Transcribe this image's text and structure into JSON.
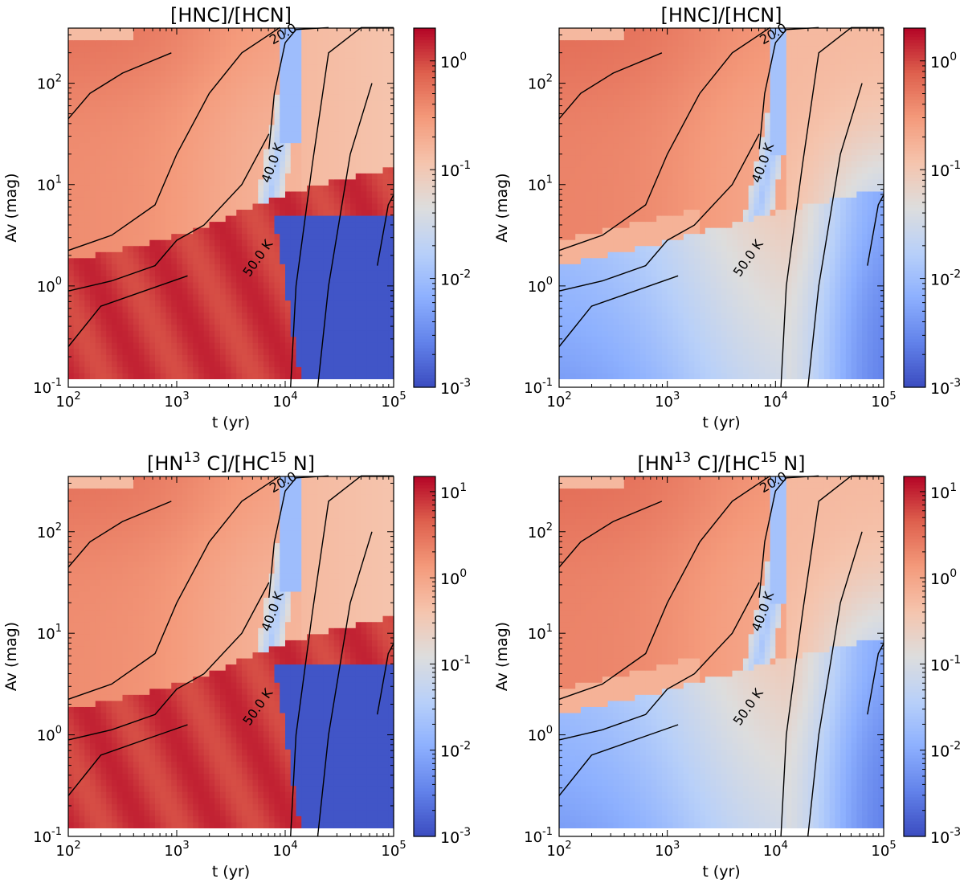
{
  "figure": {
    "panel_count": 4,
    "layout": "2x2"
  },
  "chart_data": [
    {
      "type": "heatmap",
      "panel": "top-left",
      "title": "[HNC]/[HCN]",
      "xlabel": "t (yr)",
      "ylabel": "Av (mag)",
      "xscale": "log",
      "yscale": "log",
      "xlim": [
        100,
        100000
      ],
      "ylim": [
        0.1,
        350
      ],
      "x_ticks": [
        {
          "base": "10",
          "exp": "2"
        },
        {
          "base": "10",
          "exp": "3"
        },
        {
          "base": "10",
          "exp": "4"
        },
        {
          "base": "10",
          "exp": "5"
        }
      ],
      "y_ticks": [
        {
          "base": "10",
          "exp": "-1"
        },
        {
          "base": "10",
          "exp": "0"
        },
        {
          "base": "10",
          "exp": "1"
        },
        {
          "base": "10",
          "exp": "2"
        }
      ],
      "colorbar": {
        "colormap": "coolwarm",
        "scale": "log",
        "range": [
          0.001,
          2
        ],
        "ticks": [
          {
            "base": "10",
            "exp": "-3"
          },
          {
            "base": "10",
            "exp": "-2"
          },
          {
            "base": "10",
            "exp": "-1"
          },
          {
            "base": "10",
            "exp": "0"
          }
        ]
      },
      "variant": "A",
      "contour_labels": [
        "20.0",
        "40.0 K",
        "50.0 K"
      ]
    },
    {
      "type": "heatmap",
      "panel": "top-right",
      "title": "[HNC]/[HCN]",
      "xlabel": "t (yr)",
      "ylabel": "Av (mag)",
      "xscale": "log",
      "yscale": "log",
      "xlim": [
        100,
        100000
      ],
      "ylim": [
        0.1,
        350
      ],
      "x_ticks": [
        {
          "base": "10",
          "exp": "2"
        },
        {
          "base": "10",
          "exp": "3"
        },
        {
          "base": "10",
          "exp": "4"
        },
        {
          "base": "10",
          "exp": "5"
        }
      ],
      "y_ticks": [
        {
          "base": "10",
          "exp": "-1"
        },
        {
          "base": "10",
          "exp": "0"
        },
        {
          "base": "10",
          "exp": "1"
        },
        {
          "base": "10",
          "exp": "2"
        }
      ],
      "colorbar": {
        "colormap": "coolwarm",
        "scale": "log",
        "range": [
          0.001,
          2
        ],
        "ticks": [
          {
            "base": "10",
            "exp": "-3"
          },
          {
            "base": "10",
            "exp": "-2"
          },
          {
            "base": "10",
            "exp": "-1"
          },
          {
            "base": "10",
            "exp": "0"
          }
        ]
      },
      "variant": "B",
      "contour_labels": [
        "20.0",
        "40.0 K",
        "50.0 K"
      ]
    },
    {
      "type": "heatmap",
      "panel": "bottom-left",
      "title": "[HN13C]/[HC15N]",
      "title_parts": [
        {
          "t": "[HN"
        },
        {
          "sup": "13"
        },
        {
          "t": " C]/[HC"
        },
        {
          "sup": "15"
        },
        {
          "t": " N]"
        }
      ],
      "xlabel": "t (yr)",
      "ylabel": "Av (mag)",
      "xscale": "log",
      "yscale": "log",
      "xlim": [
        100,
        100000
      ],
      "ylim": [
        0.1,
        350
      ],
      "x_ticks": [
        {
          "base": "10",
          "exp": "2"
        },
        {
          "base": "10",
          "exp": "3"
        },
        {
          "base": "10",
          "exp": "4"
        },
        {
          "base": "10",
          "exp": "5"
        }
      ],
      "y_ticks": [
        {
          "base": "10",
          "exp": "-1"
        },
        {
          "base": "10",
          "exp": "0"
        },
        {
          "base": "10",
          "exp": "1"
        },
        {
          "base": "10",
          "exp": "2"
        }
      ],
      "colorbar": {
        "colormap": "coolwarm",
        "scale": "log",
        "range": [
          0.001,
          15
        ],
        "ticks": [
          {
            "base": "10",
            "exp": "-3"
          },
          {
            "base": "10",
            "exp": "-2"
          },
          {
            "base": "10",
            "exp": "-1"
          },
          {
            "base": "10",
            "exp": "0"
          },
          {
            "base": "10",
            "exp": "1"
          }
        ]
      },
      "variant": "A",
      "contour_labels": [
        "20.0",
        "40.0 K",
        "50.0 K"
      ]
    },
    {
      "type": "heatmap",
      "panel": "bottom-right",
      "title": "[HN13C]/[HC15N]",
      "title_parts": [
        {
          "t": "[HN"
        },
        {
          "sup": "13"
        },
        {
          "t": " C]/[HC"
        },
        {
          "sup": "15"
        },
        {
          "t": " N]"
        }
      ],
      "xlabel": "t (yr)",
      "ylabel": "Av (mag)",
      "xscale": "log",
      "yscale": "log",
      "xlim": [
        100,
        100000
      ],
      "ylim": [
        0.1,
        350
      ],
      "x_ticks": [
        {
          "base": "10",
          "exp": "2"
        },
        {
          "base": "10",
          "exp": "3"
        },
        {
          "base": "10",
          "exp": "4"
        },
        {
          "base": "10",
          "exp": "5"
        }
      ],
      "y_ticks": [
        {
          "base": "10",
          "exp": "-1"
        },
        {
          "base": "10",
          "exp": "0"
        },
        {
          "base": "10",
          "exp": "1"
        },
        {
          "base": "10",
          "exp": "2"
        }
      ],
      "colorbar": {
        "colormap": "coolwarm",
        "scale": "log",
        "range": [
          0.001,
          15
        ],
        "ticks": [
          {
            "base": "10",
            "exp": "-3"
          },
          {
            "base": "10",
            "exp": "-2"
          },
          {
            "base": "10",
            "exp": "-1"
          },
          {
            "base": "10",
            "exp": "0"
          },
          {
            "base": "10",
            "exp": "1"
          }
        ]
      },
      "variant": "B",
      "contour_labels": [
        "20.0",
        "40.0 K",
        "50.0 K"
      ]
    }
  ]
}
